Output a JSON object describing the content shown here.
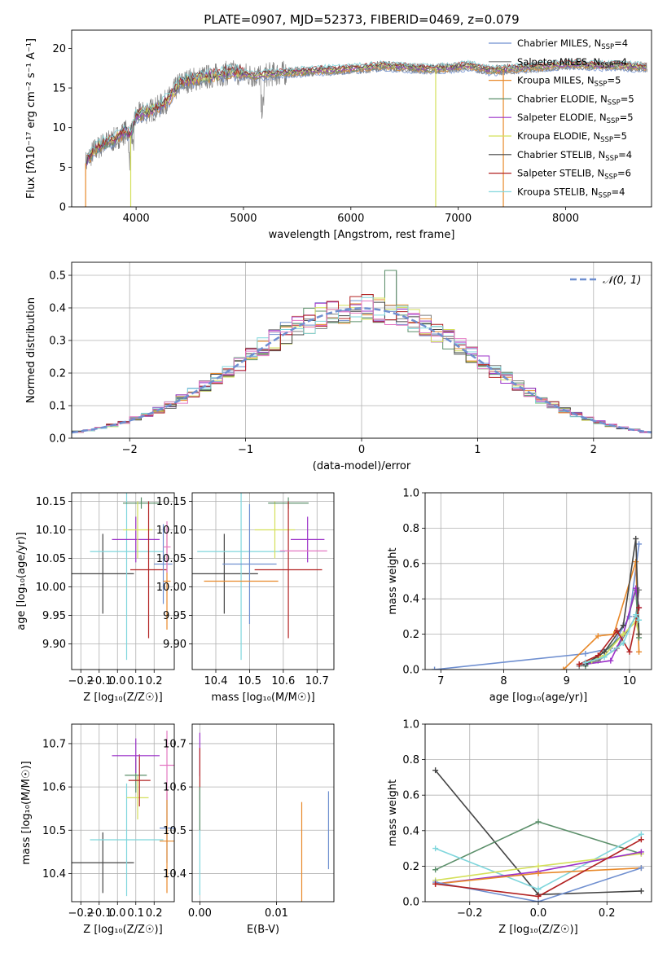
{
  "chart_data": [
    {
      "type": "line",
      "title": "PLATE=0907, MJD=52373, FIBERID=0469, z=0.079",
      "xlabel": "wavelength [Angstrom, rest frame]",
      "ylabel": "Flux [fλ10⁻¹⁷ erg cm⁻² s⁻¹ A⁻¹]",
      "xlim": [
        3400,
        8800
      ],
      "ylim": [
        0,
        22.3
      ],
      "xticks": [
        4000,
        5000,
        6000,
        7000,
        8000
      ],
      "yticks": [
        0,
        5,
        10,
        15,
        20
      ],
      "legend_position": "right",
      "legend": [
        {
          "label": "Chabrier MILES, N",
          "sub": "SSP",
          "suffix": "=4",
          "color": "#6f8fd0"
        },
        {
          "label": "Salpeter MILES, N",
          "sub": "SSP",
          "suffix": "=4",
          "color": "#7f7f7f"
        },
        {
          "label": "Kroupa MILES, N",
          "sub": "SSP",
          "suffix": "=5",
          "color": "#e8892a"
        },
        {
          "label": "Chabrier ELODIE, N",
          "sub": "SSP",
          "suffix": "=5",
          "color": "#5b8f6a"
        },
        {
          "label": "Salpeter ELODIE, N",
          "sub": "SSP",
          "suffix": "=5",
          "color": "#9b30c8"
        },
        {
          "label": "Kroupa ELODIE, N",
          "sub": "SSP",
          "suffix": "=5",
          "color": "#d4e05a"
        },
        {
          "label": "Chabrier STELIB, N",
          "sub": "SSP",
          "suffix": "=4",
          "color": "#444444"
        },
        {
          "label": "Salpeter STELIB, N",
          "sub": "SSP",
          "suffix": "=6",
          "color": "#b22222"
        },
        {
          "label": "Kroupa STELIB, N",
          "sub": "SSP",
          "suffix": "=4",
          "color": "#7fd6dc"
        }
      ],
      "continuum": {
        "x": [
          3530,
          3600,
          3700,
          3800,
          3900,
          3950,
          4000,
          4100,
          4200,
          4300,
          4400,
          4500,
          4700,
          4900,
          5100,
          5300,
          5500,
          5700,
          5900,
          6100,
          6300,
          6500,
          6700,
          6900,
          7100,
          7300,
          7500,
          7700,
          7900,
          8100,
          8300,
          8500,
          8750
        ],
        "y": [
          5.5,
          7.0,
          8.0,
          8.5,
          9.5,
          9.0,
          11.5,
          12.0,
          12.5,
          13.5,
          15.5,
          16.0,
          16.5,
          17.0,
          16.5,
          16.8,
          17.0,
          17.2,
          17.3,
          17.5,
          17.8,
          17.6,
          17.4,
          17.5,
          17.8,
          17.2,
          17.4,
          17.6,
          17.8,
          18.0,
          17.8,
          17.8,
          17.6
        ]
      },
      "drops": [
        {
          "x": 3530,
          "color": "#e8892a"
        },
        {
          "x": 3950,
          "color": "#d4e05a"
        },
        {
          "x": 6790,
          "color": "#d4e05a"
        },
        {
          "x": 7420,
          "color": "#e8892a"
        }
      ]
    },
    {
      "type": "line",
      "xlabel": "(data-model)/error",
      "ylabel": "Normed distribution",
      "xlim": [
        -2.5,
        2.5
      ],
      "ylim": [
        0,
        0.54
      ],
      "xticks": [
        -2,
        -1,
        0,
        1,
        2
      ],
      "yticks": [
        0.0,
        0.1,
        0.2,
        0.3,
        0.4,
        0.5
      ],
      "legend": [
        {
          "label": "𝒩(0, 1)",
          "color": "#6f8fd0",
          "style": "dashed"
        }
      ],
      "bin_width": 0.1,
      "bin_start": -2.5,
      "histogram_colors": [
        "#6f8fd0",
        "#7f7f7f",
        "#e8892a",
        "#5b8f6a",
        "#9b30c8",
        "#d4e05a",
        "#444444",
        "#b22222",
        "#7fd6dc",
        "#e377c2"
      ]
    },
    {
      "type": "scatter",
      "xlabel": "Z [log₁₀(Z/Z☉)]",
      "ylabel": "age  [log₁₀(age/yr)]",
      "xlim": [
        -0.25,
        0.31
      ],
      "ylim": [
        9.855,
        10.165
      ],
      "xticks": [
        -0.2,
        -0.1,
        0.0,
        0.1,
        0.2
      ],
      "yticks": [
        9.9,
        9.95,
        10.0,
        10.05,
        10.1,
        10.15
      ],
      "points": [
        {
          "x": -0.08,
          "y": 10.023,
          "xerr": 0.17,
          "yerr": 0.07,
          "color": "#444444"
        },
        {
          "x": 0.05,
          "y": 10.062,
          "xerr": 0.2,
          "yerr": 0.19,
          "color": "#7fd6dc"
        },
        {
          "x": 0.1,
          "y": 10.083,
          "xerr": 0.13,
          "yerr": 0.04,
          "color": "#9b30c8"
        },
        {
          "x": 0.13,
          "y": 10.147,
          "xerr": 0.1,
          "yerr": 0.01,
          "color": "#5b8f6a"
        },
        {
          "x": 0.11,
          "y": 10.1,
          "xerr": 0.08,
          "yerr": 0.05,
          "color": "#d4e05a"
        },
        {
          "x": 0.17,
          "y": 10.03,
          "xerr": 0.1,
          "yerr": 0.12,
          "color": "#b22222"
        },
        {
          "x": 0.25,
          "y": 10.04,
          "xerr": 0.05,
          "yerr": 0.07,
          "color": "#6f8fd0"
        },
        {
          "x": 0.27,
          "y": 10.01,
          "xerr": 0.02,
          "yerr": 0.085,
          "color": "#e8892a"
        },
        {
          "x": 0.27,
          "y": 10.07,
          "xerr": 0.02,
          "yerr": 0.045,
          "color": "#e377c2"
        }
      ]
    },
    {
      "type": "scatter",
      "xlabel": "mass [log₁₀(M/M☉)]",
      "xlim": [
        10.33,
        10.75
      ],
      "ylim": [
        9.855,
        10.165
      ],
      "xticks": [
        10.4,
        10.5,
        10.6,
        10.7
      ],
      "yticks": [
        9.9,
        9.95,
        10.0,
        10.05,
        10.1,
        10.15
      ],
      "points": [
        {
          "x": 10.425,
          "y": 10.023,
          "xerr": 0.1,
          "yerr": 0.07,
          "color": "#444444"
        },
        {
          "x": 10.475,
          "y": 10.062,
          "xerr": 0.13,
          "yerr": 0.19,
          "color": "#7fd6dc"
        },
        {
          "x": 10.5,
          "y": 10.04,
          "xerr": 0.08,
          "yerr": 0.105,
          "color": "#6f8fd0"
        },
        {
          "x": 10.475,
          "y": 10.01,
          "xerr": 0.11,
          "yerr": 0.0,
          "color": "#e8892a"
        },
        {
          "x": 10.575,
          "y": 10.1,
          "xerr": 0.06,
          "yerr": 0.05,
          "color": "#d4e05a"
        },
        {
          "x": 10.615,
          "y": 10.147,
          "xerr": 0.06,
          "yerr": 0.01,
          "color": "#5b8f6a"
        },
        {
          "x": 10.615,
          "y": 10.03,
          "xerr": 0.1,
          "yerr": 0.12,
          "color": "#b22222"
        },
        {
          "x": 10.672,
          "y": 10.083,
          "xerr": 0.05,
          "yerr": 0.04,
          "color": "#9b30c8"
        },
        {
          "x": 10.66,
          "y": 10.063,
          "xerr": 0.07,
          "yerr": 0.0,
          "color": "#e377c2"
        }
      ]
    },
    {
      "type": "line",
      "xlabel": "age  [log₁₀(age/yr)]",
      "ylabel": "mass weight",
      "xlim": [
        6.75,
        10.35
      ],
      "ylim": [
        0,
        1.0
      ],
      "xticks": [
        7,
        8,
        9,
        10
      ],
      "yticks": [
        0.0,
        0.2,
        0.4,
        0.6,
        0.8,
        1.0
      ],
      "series": [
        {
          "color": "#6f8fd0",
          "x": [
            6.9,
            9.3,
            9.7,
            10.0,
            10.15
          ],
          "y": [
            0.0,
            0.09,
            0.12,
            0.3,
            0.71
          ]
        },
        {
          "color": "#7f7f7f",
          "x": [
            9.2,
            9.5,
            9.8,
            10.1,
            10.15
          ],
          "y": [
            0.02,
            0.05,
            0.12,
            0.3,
            0.45
          ]
        },
        {
          "color": "#e8892a",
          "x": [
            8.95,
            9.5,
            9.75,
            10.1,
            10.15
          ],
          "y": [
            0.0,
            0.19,
            0.2,
            0.61,
            0.1
          ]
        },
        {
          "color": "#5b8f6a",
          "x": [
            9.3,
            9.6,
            9.9,
            10.1,
            10.15
          ],
          "y": [
            0.02,
            0.1,
            0.2,
            0.45,
            0.18
          ]
        },
        {
          "color": "#9b30c8",
          "x": [
            9.3,
            9.7,
            9.9,
            10.1,
            10.15
          ],
          "y": [
            0.03,
            0.05,
            0.2,
            0.46,
            0.35
          ]
        },
        {
          "color": "#d4e05a",
          "x": [
            9.4,
            9.6,
            9.9,
            10.1,
            10.15
          ],
          "y": [
            0.05,
            0.08,
            0.2,
            0.27,
            0.2
          ]
        },
        {
          "color": "#444444",
          "x": [
            9.3,
            9.6,
            9.9,
            10.1,
            10.15
          ],
          "y": [
            0.03,
            0.1,
            0.25,
            0.74,
            0.2
          ]
        },
        {
          "color": "#b22222",
          "x": [
            9.2,
            9.5,
            9.8,
            10.0,
            10.15
          ],
          "y": [
            0.03,
            0.08,
            0.22,
            0.1,
            0.35
          ]
        },
        {
          "color": "#7fd6dc",
          "x": [
            9.3,
            9.6,
            9.9,
            10.1,
            10.15
          ],
          "y": [
            0.04,
            0.07,
            0.15,
            0.31,
            0.28
          ]
        }
      ]
    },
    {
      "type": "scatter",
      "xlabel": "Z [log₁₀(Z/Z☉)]",
      "ylabel": "mass [log₁₀(M/M☉)]",
      "xlim": [
        -0.25,
        0.31
      ],
      "ylim": [
        10.335,
        10.745
      ],
      "xticks": [
        -0.2,
        -0.1,
        0.0,
        0.1,
        0.2
      ],
      "yticks": [
        10.4,
        10.5,
        10.6,
        10.7
      ],
      "points": [
        {
          "x": -0.08,
          "y": 10.425,
          "xerr": 0.17,
          "yerr": 0.07,
          "color": "#444444"
        },
        {
          "x": 0.05,
          "y": 10.478,
          "xerr": 0.2,
          "yerr": 0.13,
          "color": "#7fd6dc"
        },
        {
          "x": 0.11,
          "y": 10.575,
          "xerr": 0.06,
          "yerr": 0.05,
          "color": "#d4e05a"
        },
        {
          "x": 0.1,
          "y": 10.627,
          "xerr": 0.06,
          "yerr": 0.04,
          "color": "#5b8f6a"
        },
        {
          "x": 0.12,
          "y": 10.615,
          "xerr": 0.06,
          "yerr": 0.06,
          "color": "#b22222"
        },
        {
          "x": 0.1,
          "y": 10.672,
          "xerr": 0.13,
          "yerr": 0.04,
          "color": "#9b30c8"
        },
        {
          "x": 0.27,
          "y": 10.505,
          "xerr": 0.04,
          "yerr": 0.08,
          "color": "#6f8fd0"
        },
        {
          "x": 0.27,
          "y": 10.475,
          "xerr": 0.04,
          "yerr": 0.12,
          "color": "#e8892a"
        },
        {
          "x": 0.27,
          "y": 10.65,
          "xerr": 0.04,
          "yerr": 0.08,
          "color": "#e377c2"
        }
      ]
    },
    {
      "type": "scatter",
      "xlabel": "E(B-V)",
      "xlim": [
        -0.001,
        0.0175
      ],
      "ylim": [
        10.335,
        10.745
      ],
      "xticks": [
        0.0,
        0.01
      ],
      "yticks": [
        10.4,
        10.5,
        10.6,
        10.7
      ],
      "points": [
        {
          "x": 0.0,
          "y": 10.675,
          "yerr": 0.05,
          "color": "#9b30c8"
        },
        {
          "x": 0.0,
          "y": 10.63,
          "yerr": 0.06,
          "color": "#b22222"
        },
        {
          "x": 0.0,
          "y": 10.47,
          "yerr": 0.12,
          "color": "#7fd6dc"
        },
        {
          "x": 0.0,
          "y": 10.55,
          "yerr": 0.05,
          "color": "#5b8f6a"
        },
        {
          "x": 0.0133,
          "y": 10.45,
          "yerr": 0.115,
          "color": "#e8892a"
        },
        {
          "x": 0.0168,
          "y": 10.5,
          "yerr": 0.09,
          "color": "#6f8fd0"
        }
      ]
    },
    {
      "type": "line",
      "xlabel": "Z [log₁₀(Z/Z☉)]",
      "ylabel": "mass weight",
      "xlim": [
        -0.33,
        0.33
      ],
      "ylim": [
        0,
        1.0
      ],
      "xticks": [
        -0.2,
        0.0,
        0.2
      ],
      "yticks": [
        0.0,
        0.2,
        0.4,
        0.6,
        0.8,
        1.0
      ],
      "series": [
        {
          "color": "#444444",
          "x": [
            -0.3,
            0.0,
            0.3
          ],
          "y": [
            0.74,
            0.04,
            0.06
          ]
        },
        {
          "color": "#5b8f6a",
          "x": [
            -0.3,
            0.0,
            0.3
          ],
          "y": [
            0.18,
            0.45,
            0.27
          ]
        },
        {
          "color": "#7fd6dc",
          "x": [
            -0.3,
            0.0,
            0.3
          ],
          "y": [
            0.3,
            0.07,
            0.38
          ]
        },
        {
          "color": "#d4e05a",
          "x": [
            -0.3,
            0.0,
            0.3
          ],
          "y": [
            0.12,
            0.2,
            0.27
          ]
        },
        {
          "color": "#9b30c8",
          "x": [
            -0.3,
            0.0,
            0.3
          ],
          "y": [
            0.1,
            0.17,
            0.28
          ]
        },
        {
          "color": "#e8892a",
          "x": [
            -0.3,
            0.0,
            0.3
          ],
          "y": [
            0.1,
            0.16,
            0.19
          ]
        },
        {
          "color": "#6f8fd0",
          "x": [
            -0.3,
            0.0,
            0.3
          ],
          "y": [
            0.11,
            0.0,
            0.19
          ]
        },
        {
          "color": "#b22222",
          "x": [
            -0.3,
            0.0,
            0.3
          ],
          "y": [
            0.1,
            0.03,
            0.35
          ]
        }
      ]
    }
  ]
}
